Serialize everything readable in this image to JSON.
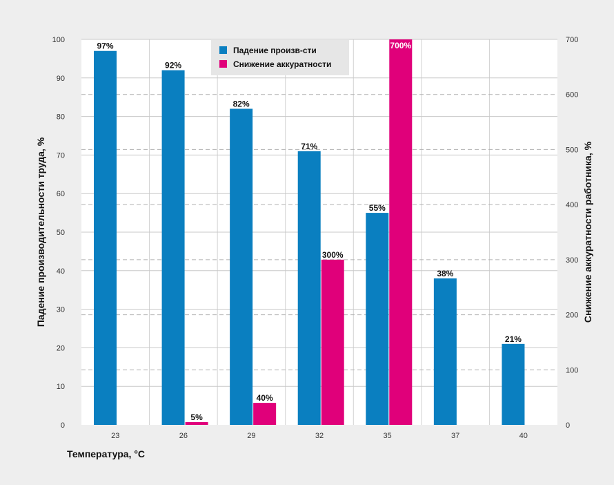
{
  "chart_data": {
    "type": "bar",
    "categories": [
      "23",
      "26",
      "29",
      "32",
      "35",
      "37",
      "40"
    ],
    "series": [
      {
        "name": "Падение произв-сти",
        "axis": "left",
        "color": "#0a7fc0",
        "values": [
          97,
          92,
          82,
          71,
          55,
          38,
          21
        ],
        "labels": [
          "97%",
          "92%",
          "82%",
          "71%",
          "55%",
          "38%",
          "21%"
        ]
      },
      {
        "name": "Снижение аккуратности",
        "axis": "right",
        "color": "#e0007a",
        "values": [
          null,
          5,
          40,
          300,
          700,
          null,
          null
        ],
        "labels": [
          "",
          "5%",
          "40%",
          "300%",
          "700%",
          "",
          ""
        ]
      }
    ],
    "xlabel": "Температура, °C",
    "ylabel": "Падение производительности труда, %",
    "y2label": "Снижение аккуратности работника, %",
    "ylim": [
      0,
      100
    ],
    "y2lim": [
      0,
      700
    ],
    "yticks": [
      "0",
      "10",
      "20",
      "30",
      "40",
      "50",
      "60",
      "70",
      "80",
      "90",
      "100"
    ],
    "y2ticks": [
      "0",
      "100",
      "200",
      "300",
      "400",
      "500",
      "600",
      "700"
    ],
    "grid": true,
    "legend_position": "top-center",
    "plot_background": "#ffffff",
    "page_background": "#eeeeee",
    "legend_background": "#e6e6e6"
  }
}
